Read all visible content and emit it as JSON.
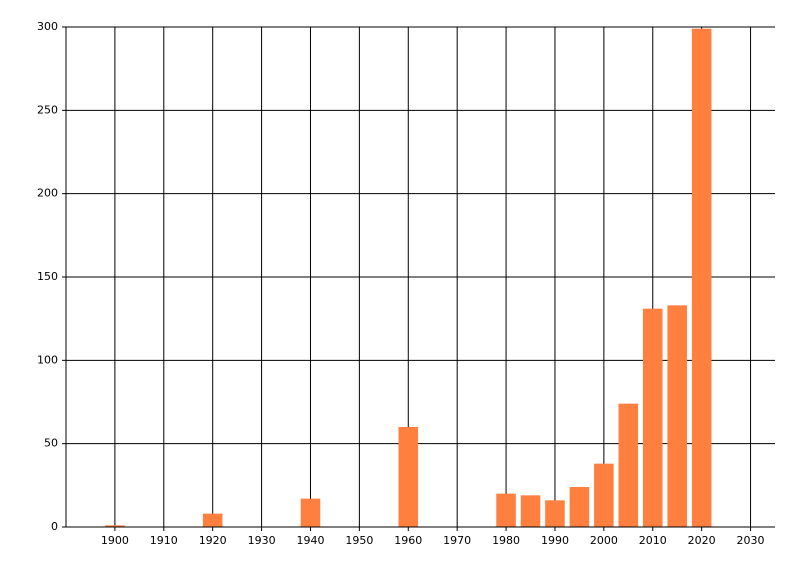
{
  "chart_data": {
    "type": "bar",
    "x": [
      1900,
      1920,
      1940,
      1960,
      1980,
      1985,
      1990,
      1995,
      2000,
      2005,
      2010,
      2015,
      2020
    ],
    "values": [
      1,
      8,
      17,
      60,
      20,
      19,
      16,
      24,
      38,
      74,
      131,
      133,
      299
    ],
    "color": "#ff7f3f",
    "xlim": [
      1890,
      2035
    ],
    "xticks": [
      1900,
      1910,
      1920,
      1930,
      1940,
      1950,
      1960,
      1970,
      1980,
      1990,
      2000,
      2010,
      2020,
      2030
    ],
    "ylim": [
      0,
      300
    ],
    "yticks": [
      0,
      50,
      100,
      150,
      200,
      250,
      300
    ],
    "grid": true
  }
}
